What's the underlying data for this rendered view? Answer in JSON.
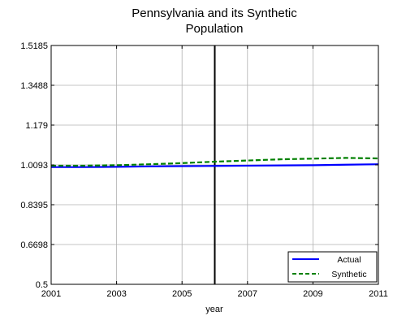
{
  "chart_data": {
    "type": "line",
    "title_lines": [
      "Pennsylvania and its Synthetic",
      "Population"
    ],
    "xlabel": "year",
    "ylabel": "",
    "xlim": [
      2001,
      2011
    ],
    "ylim": [
      0.5,
      1.5185
    ],
    "x_ticks": [
      2001,
      2003,
      2005,
      2007,
      2009,
      2011
    ],
    "x_tick_labels": [
      "2001",
      "2003",
      "2005",
      "2007",
      "2009",
      "2011"
    ],
    "y_ticks": [
      0.5,
      0.6698,
      0.8395,
      1.0093,
      1.179,
      1.3488,
      1.5185
    ],
    "y_tick_labels": [
      "0.5",
      "0.6698",
      "0.8395",
      "1.0093",
      "1.179",
      "1.3488",
      "1.5185"
    ],
    "grid": true,
    "legend_position": "bottom-right",
    "vertical_marker_x": 2006,
    "x": [
      2001,
      2002,
      2003,
      2004,
      2005,
      2006,
      2007,
      2008,
      2009,
      2010,
      2011
    ],
    "series": [
      {
        "name": "Actual",
        "color": "#0000ff",
        "dash": "solid",
        "values": [
          1.0,
          1.0,
          1.001,
          1.003,
          1.004,
          1.005,
          1.006,
          1.007,
          1.008,
          1.01,
          1.012
        ]
      },
      {
        "name": "Synthetic",
        "color": "#008000",
        "dash": "dashed",
        "values": [
          1.006,
          1.006,
          1.008,
          1.012,
          1.017,
          1.023,
          1.028,
          1.033,
          1.036,
          1.039,
          1.037
        ]
      }
    ]
  }
}
